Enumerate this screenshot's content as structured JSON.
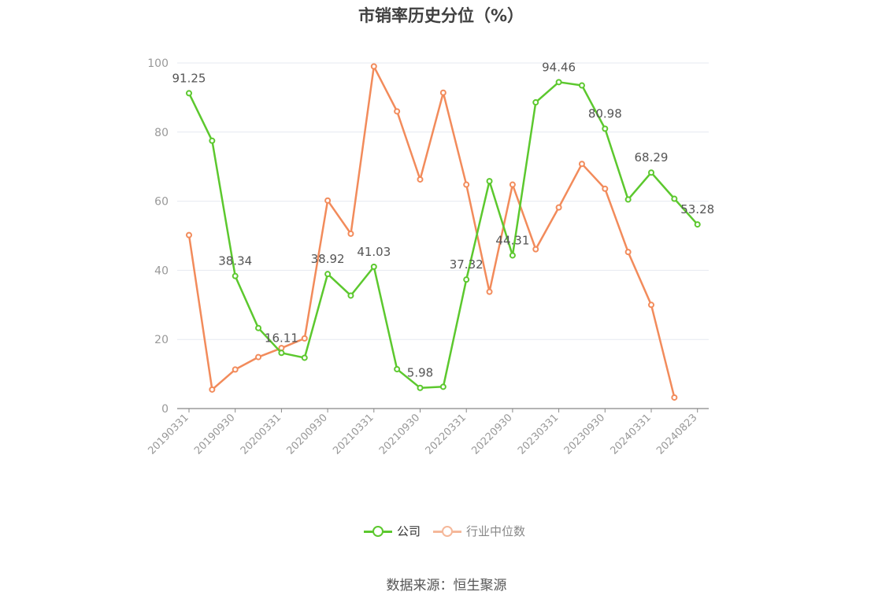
{
  "title": "市销率历史分位（%）",
  "source": "数据来源：恒生聚源",
  "colors": {
    "company": "#5cc82e",
    "industry": "#f28b5b",
    "industry_legend": "#f5b89a",
    "grid": "#e6e9f0",
    "axis": "#999999",
    "label": "#555555"
  },
  "chart_data": {
    "type": "line",
    "title": "市销率历史分位（%）",
    "ylim": [
      0,
      100
    ],
    "yticks": [
      0,
      20,
      40,
      60,
      80,
      100
    ],
    "grid": true,
    "legend_position": "bottom-center",
    "xtick_labels": [
      "20190331",
      "20190930",
      "20200331",
      "20200930",
      "20210331",
      "20210930",
      "20220331",
      "20220930",
      "20230331",
      "20230930",
      "20240331",
      "20240823"
    ],
    "x": [
      "20190331",
      "20190630",
      "20190930",
      "20191231",
      "20200331",
      "20200630",
      "20200930",
      "20201231",
      "20210331",
      "20210630",
      "20210930",
      "20211231",
      "20220331",
      "20220630",
      "20220930",
      "20221231",
      "20230331",
      "20230630",
      "20230930",
      "20231231",
      "20240331",
      "20240630",
      "20240823"
    ],
    "series": [
      {
        "name": "公司",
        "values": [
          91.25,
          77.5,
          38.34,
          23.3,
          16.11,
          14.7,
          38.92,
          32.7,
          41.03,
          11.4,
          5.98,
          6.3,
          37.32,
          65.8,
          44.31,
          88.6,
          94.46,
          93.5,
          80.98,
          60.5,
          68.29,
          60.7,
          53.28
        ],
        "labeled": [
          91.25,
          null,
          38.34,
          null,
          16.11,
          null,
          38.92,
          null,
          41.03,
          null,
          5.98,
          null,
          37.32,
          null,
          44.31,
          null,
          94.46,
          null,
          80.98,
          null,
          68.29,
          null,
          53.28
        ]
      },
      {
        "name": "行业中位数",
        "values": [
          50.2,
          5.5,
          11.3,
          14.9,
          17.5,
          20.3,
          60.2,
          50.6,
          99.0,
          86.0,
          66.3,
          91.4,
          64.8,
          33.8,
          64.8,
          46.1,
          58.2,
          70.8,
          63.6,
          45.3,
          30.0,
          3.2,
          null
        ]
      }
    ]
  }
}
